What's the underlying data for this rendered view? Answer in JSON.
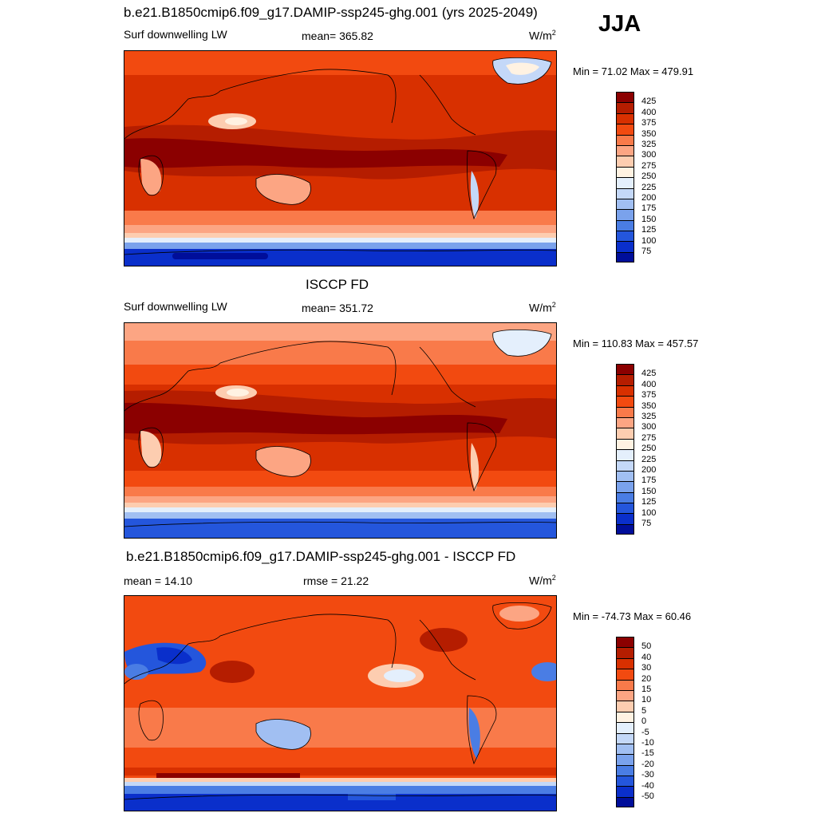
{
  "season": "JJA",
  "units_base": "W/m",
  "units_sup": "2",
  "panels": [
    {
      "title": "b.e21.B1850cmip6.f09_g17.DAMIP-ssp245-ghg.001 (yrs 2025-2049)",
      "left_label": "Surf downwelling LW",
      "center_label": "mean= 365.82",
      "minmax": "Min =  71.02 Max = 479.91",
      "scheme": "abs"
    },
    {
      "title": "ISCCP FD",
      "left_label": "Surf downwelling LW",
      "center_label": "mean= 351.72",
      "minmax": "Min = 110.83 Max = 457.57",
      "scheme": "abs"
    },
    {
      "title": "b.e21.B1850cmip6.f09_g17.DAMIP-ssp245-ghg.001 - ISCCP FD",
      "left_label": "mean =  14.10",
      "center_label": "rmse =  21.22",
      "minmax": "Min = -74.73 Max =  60.46",
      "scheme": "diff"
    }
  ],
  "colorbars": {
    "abs": {
      "labels": [
        "425",
        "400",
        "375",
        "350",
        "325",
        "300",
        "275",
        "250",
        "225",
        "200",
        "175",
        "150",
        "125",
        "100",
        "75"
      ],
      "colors": [
        "#8b0000",
        "#b51d00",
        "#d83000",
        "#f24a10",
        "#f97a4a",
        "#fca583",
        "#fdcdb0",
        "#fff2e2",
        "#e4effc",
        "#c4d8f8",
        "#a1bff2",
        "#7aa2ec",
        "#4a7de4",
        "#2456dc",
        "#0a2fcb",
        "#000e9a"
      ]
    },
    "diff": {
      "labels": [
        "50",
        "40",
        "30",
        "20",
        "15",
        "10",
        "5",
        "0",
        "-5",
        "-10",
        "-15",
        "-20",
        "-30",
        "-40",
        "-50"
      ],
      "colors": [
        "#8b0000",
        "#b51d00",
        "#d83000",
        "#f24a10",
        "#f97a4a",
        "#fca583",
        "#fdcdb0",
        "#fff2e2",
        "#e4effc",
        "#c4d8f8",
        "#a1bff2",
        "#7aa2ec",
        "#4a7de4",
        "#2456dc",
        "#0a2fcb",
        "#000e9a"
      ]
    }
  }
}
